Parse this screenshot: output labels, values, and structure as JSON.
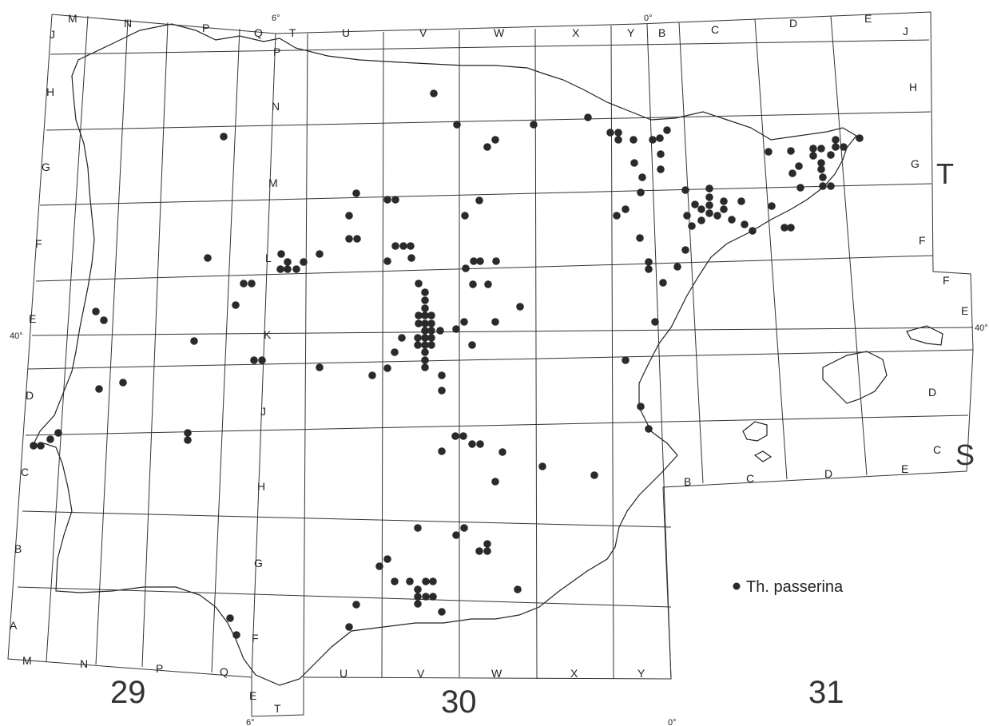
{
  "legend": {
    "label": "Th. passerina",
    "symbol": "filled-circle"
  },
  "zones": {
    "left": "29",
    "middle": "30",
    "right": "31"
  },
  "bands": {
    "upper": "T",
    "lower": "S"
  },
  "degree_labels": {
    "six_west": "6°",
    "zero": "0°",
    "forty": "40°"
  },
  "grid_letters": {
    "top": [
      "M",
      "N",
      "P",
      "Q",
      "T",
      "U",
      "V",
      "W",
      "X",
      "Y",
      "B",
      "C",
      "D",
      "E"
    ],
    "top_inner": [
      "P"
    ],
    "bottom": [
      "M",
      "N",
      "P",
      "Q",
      "U",
      "V",
      "W",
      "X",
      "Y"
    ],
    "bottom_sub": [
      "E",
      "T"
    ],
    "bottom_right": [
      "B",
      "C",
      "D",
      "E"
    ],
    "left": [
      "J",
      "H",
      "G",
      "F",
      "E",
      "D",
      "C",
      "B",
      "A"
    ],
    "right": [
      "J",
      "H",
      "G",
      "F",
      "F",
      "E",
      "D",
      "C"
    ],
    "central_column": [
      "N",
      "M",
      "L",
      "K",
      "J",
      "H",
      "G",
      "F"
    ]
  },
  "colors": {
    "ink": "#222222",
    "dot": "#2a2a2a",
    "paper": "#ffffff"
  },
  "occurrences": [
    [
      543,
      117
    ],
    [
      572,
      156
    ],
    [
      668,
      156
    ],
    [
      736,
      147
    ],
    [
      610,
      184
    ],
    [
      620,
      175
    ],
    [
      764,
      166
    ],
    [
      774,
      166
    ],
    [
      774,
      175
    ],
    [
      793,
      175
    ],
    [
      817,
      175
    ],
    [
      826,
      173
    ],
    [
      835,
      163
    ],
    [
      827,
      193
    ],
    [
      827,
      212
    ],
    [
      794,
      204
    ],
    [
      804,
      222
    ],
    [
      802,
      241
    ],
    [
      783,
      262
    ],
    [
      772,
      270
    ],
    [
      280,
      171
    ],
    [
      446,
      242
    ],
    [
      485,
      250
    ],
    [
      495,
      250
    ],
    [
      600,
      251
    ],
    [
      437,
      270
    ],
    [
      582,
      270
    ],
    [
      437,
      299
    ],
    [
      447,
      299
    ],
    [
      495,
      308
    ],
    [
      505,
      308
    ],
    [
      514,
      308
    ],
    [
      485,
      327
    ],
    [
      515,
      323
    ],
    [
      260,
      323
    ],
    [
      352,
      318
    ],
    [
      360,
      328
    ],
    [
      351,
      337
    ],
    [
      360,
      337
    ],
    [
      371,
      337
    ],
    [
      380,
      328
    ],
    [
      400,
      318
    ],
    [
      583,
      336
    ],
    [
      593,
      327
    ],
    [
      601,
      327
    ],
    [
      621,
      327
    ],
    [
      592,
      356
    ],
    [
      611,
      356
    ],
    [
      305,
      355
    ],
    [
      315,
      355
    ],
    [
      295,
      382
    ],
    [
      524,
      355
    ],
    [
      532,
      366
    ],
    [
      532,
      376
    ],
    [
      532,
      386
    ],
    [
      524,
      395
    ],
    [
      532,
      395
    ],
    [
      540,
      395
    ],
    [
      524,
      405
    ],
    [
      532,
      405
    ],
    [
      540,
      405
    ],
    [
      532,
      414
    ],
    [
      540,
      414
    ],
    [
      551,
      414
    ],
    [
      523,
      423
    ],
    [
      532,
      423
    ],
    [
      540,
      423
    ],
    [
      523,
      432
    ],
    [
      532,
      432
    ],
    [
      540,
      432
    ],
    [
      532,
      441
    ],
    [
      532,
      451
    ],
    [
      532,
      460
    ],
    [
      503,
      423
    ],
    [
      494,
      441
    ],
    [
      485,
      461
    ],
    [
      466,
      470
    ],
    [
      120,
      390
    ],
    [
      130,
      401
    ],
    [
      243,
      427
    ],
    [
      651,
      384
    ],
    [
      581,
      403
    ],
    [
      571,
      412
    ],
    [
      620,
      403
    ],
    [
      591,
      432
    ],
    [
      318,
      451
    ],
    [
      328,
      451
    ],
    [
      400,
      460
    ],
    [
      553,
      470
    ],
    [
      553,
      489
    ],
    [
      124,
      487
    ],
    [
      154,
      479
    ],
    [
      235,
      542
    ],
    [
      235,
      551
    ],
    [
      42,
      558
    ],
    [
      51,
      558
    ],
    [
      63,
      550
    ],
    [
      73,
      542
    ],
    [
      570,
      546
    ],
    [
      580,
      546
    ],
    [
      591,
      556
    ],
    [
      601,
      556
    ],
    [
      553,
      565
    ],
    [
      629,
      566
    ],
    [
      679,
      584
    ],
    [
      620,
      603
    ],
    [
      744,
      595
    ],
    [
      801,
      298
    ],
    [
      812,
      328
    ],
    [
      812,
      337
    ],
    [
      830,
      354
    ],
    [
      820,
      403
    ],
    [
      783,
      451
    ],
    [
      802,
      509
    ],
    [
      812,
      537
    ],
    [
      848,
      334
    ],
    [
      858,
      313
    ],
    [
      866,
      283
    ],
    [
      860,
      270
    ],
    [
      870,
      256
    ],
    [
      858,
      238
    ],
    [
      888,
      236
    ],
    [
      888,
      247
    ],
    [
      888,
      257
    ],
    [
      888,
      267
    ],
    [
      878,
      262
    ],
    [
      878,
      276
    ],
    [
      898,
      270
    ],
    [
      906,
      252
    ],
    [
      906,
      262
    ],
    [
      916,
      275
    ],
    [
      928,
      252
    ],
    [
      932,
      281
    ],
    [
      942,
      289
    ],
    [
      966,
      258
    ],
    [
      982,
      285
    ],
    [
      990,
      285
    ],
    [
      962,
      190
    ],
    [
      1000,
      208
    ],
    [
      992,
      217
    ],
    [
      1002,
      235
    ],
    [
      990,
      189
    ],
    [
      1018,
      186
    ],
    [
      1028,
      186
    ],
    [
      1040,
      194
    ],
    [
      1018,
      195
    ],
    [
      1028,
      204
    ],
    [
      1028,
      212
    ],
    [
      1030,
      222
    ],
    [
      1030,
      233
    ],
    [
      1040,
      233
    ],
    [
      1046,
      175
    ],
    [
      1046,
      184
    ],
    [
      1056,
      184
    ],
    [
      1076,
      173
    ],
    [
      523,
      661
    ],
    [
      571,
      670
    ],
    [
      581,
      661
    ],
    [
      600,
      690
    ],
    [
      610,
      690
    ],
    [
      610,
      681
    ],
    [
      485,
      700
    ],
    [
      475,
      709
    ],
    [
      494,
      728
    ],
    [
      513,
      728
    ],
    [
      533,
      728
    ],
    [
      542,
      728
    ],
    [
      523,
      738
    ],
    [
      533,
      747
    ],
    [
      542,
      747
    ],
    [
      523,
      747
    ],
    [
      523,
      756
    ],
    [
      553,
      766
    ],
    [
      648,
      738
    ],
    [
      446,
      757
    ],
    [
      437,
      785
    ],
    [
      288,
      774
    ],
    [
      296,
      795
    ]
  ]
}
